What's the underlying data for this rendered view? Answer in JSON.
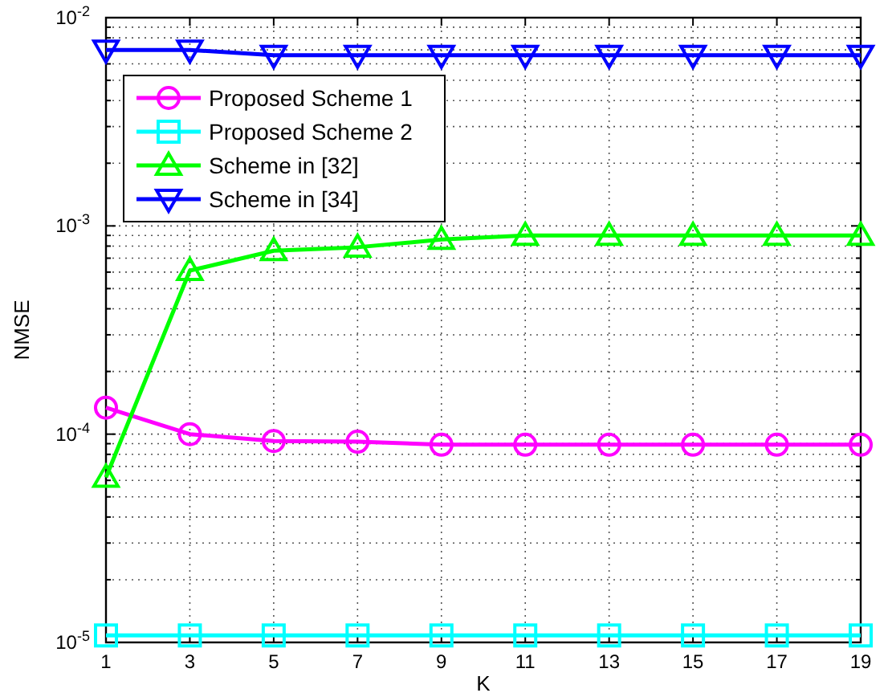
{
  "chart_data": {
    "type": "line",
    "xlabel": "K",
    "ylabel": "NMSE",
    "x": [
      1,
      3,
      5,
      7,
      9,
      11,
      13,
      15,
      17,
      19
    ],
    "series": [
      {
        "name": "Proposed Scheme 1",
        "color": "#ff00ff",
        "marker": "circle",
        "values": [
          0.000134,
          0.0001,
          9.27e-05,
          9.2e-05,
          8.9e-05,
          8.9e-05,
          8.9e-05,
          8.9e-05,
          8.9e-05,
          8.9e-05
        ]
      },
      {
        "name": "Proposed Scheme 2",
        "color": "#00ffff",
        "marker": "square",
        "values": [
          1.08e-05,
          1.08e-05,
          1.08e-05,
          1.08e-05,
          1.08e-05,
          1.08e-05,
          1.08e-05,
          1.08e-05,
          1.08e-05,
          1.08e-05
        ]
      },
      {
        "name": "Scheme in [32]",
        "color": "#00ff00",
        "marker": "triangle",
        "values": [
          6.2e-05,
          0.00061,
          0.00076,
          0.00079,
          0.00086,
          0.0009,
          0.0009,
          0.0009,
          0.0009,
          0.0009
        ]
      },
      {
        "name": "Scheme in [34]",
        "color": "#0000ff",
        "marker": "triangle-down",
        "values": [
          0.007,
          0.007,
          0.0066,
          0.0066,
          0.0066,
          0.0066,
          0.0066,
          0.0066,
          0.0066,
          0.0066
        ]
      }
    ],
    "log": "y",
    "xlim": [
      1,
      19
    ],
    "xticks": [
      1,
      3,
      5,
      7,
      9,
      11,
      13,
      15,
      17,
      19
    ],
    "ylim": [
      1e-05,
      0.01
    ],
    "yticks": [
      {
        "value": 1e-05,
        "label": "10$^{-5}$"
      },
      {
        "value": 2e-05,
        "label": null
      },
      {
        "value": 3e-05,
        "label": null
      },
      {
        "value": 4e-05,
        "label": null
      },
      {
        "value": 5e-05,
        "label": null
      },
      {
        "value": 6e-05,
        "label": null
      },
      {
        "value": 7e-05,
        "label": null
      },
      {
        "value": 8e-05,
        "label": null
      },
      {
        "value": 9e-05,
        "label": null
      },
      {
        "value": 0.0001,
        "label": "10$^{-4}$"
      },
      {
        "value": 0.0002,
        "label": null
      },
      {
        "value": 0.0003,
        "label": null
      },
      {
        "value": 0.0004,
        "label": null
      },
      {
        "value": 0.0005,
        "label": null
      },
      {
        "value": 0.0006,
        "label": null
      },
      {
        "value": 0.0007,
        "label": null
      },
      {
        "value": 0.0008,
        "label": null
      },
      {
        "value": 0.0009,
        "label": null
      },
      {
        "value": 0.001,
        "label": "10$^{-3}$"
      },
      {
        "value": 0.002,
        "label": null
      },
      {
        "value": 0.003,
        "label": null
      },
      {
        "value": 0.004,
        "label": null
      },
      {
        "value": 0.005,
        "label": null
      },
      {
        "value": 0.006,
        "label": null
      },
      {
        "value": 0.007,
        "label": null
      },
      {
        "value": 0.008,
        "label": null
      },
      {
        "value": 0.009,
        "label": null
      },
      {
        "value": 0.01,
        "label": "10$^{-2}$"
      }
    ],
    "grid": true,
    "legend": "top left",
    "line_style": "solid"
  }
}
